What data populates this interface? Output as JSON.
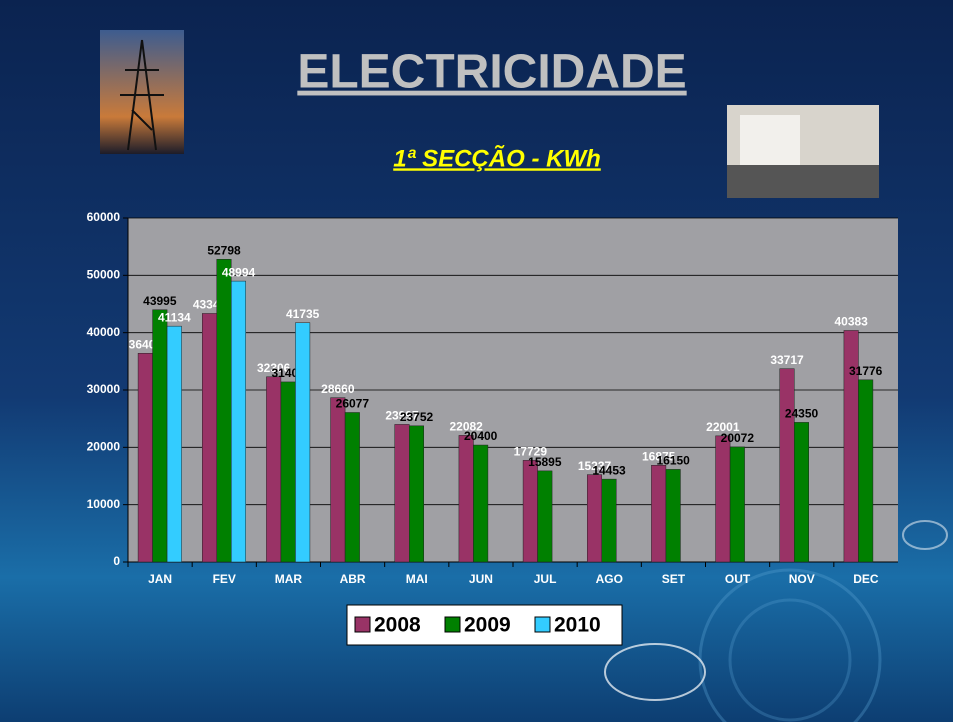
{
  "chart_data": {
    "type": "bar",
    "title": "ELECTRICIDADE",
    "subtitle": "1ª SECÇÃO - KWh",
    "categories": [
      "JAN",
      "FEV",
      "MAR",
      "ABR",
      "MAI",
      "JUN",
      "JUL",
      "AGO",
      "SET",
      "OUT",
      "NOV",
      "DEC"
    ],
    "series": [
      {
        "name": "2008",
        "color": "#993366",
        "label_color": "#ffffff",
        "values": [
          36408,
          43348,
          32306,
          28660,
          23997,
          22082,
          17729,
          15237,
          16875,
          22001,
          33717,
          40383
        ]
      },
      {
        "name": "2009",
        "color": "#008000",
        "label_color": "#000000",
        "values": [
          43995,
          52798,
          31408,
          26077,
          23752,
          20400,
          15895,
          14453,
          16150,
          20072,
          24350,
          31776
        ]
      },
      {
        "name": "2010",
        "color": "#33ccff",
        "label_color": "#ffffff",
        "values": [
          41134,
          48994,
          41735,
          null,
          null,
          null,
          null,
          null,
          null,
          null,
          null,
          null
        ]
      }
    ],
    "ylim": [
      0,
      60000
    ],
    "yticks": [
      0,
      10000,
      20000,
      30000,
      40000,
      50000,
      60000
    ],
    "grid": true
  }
}
